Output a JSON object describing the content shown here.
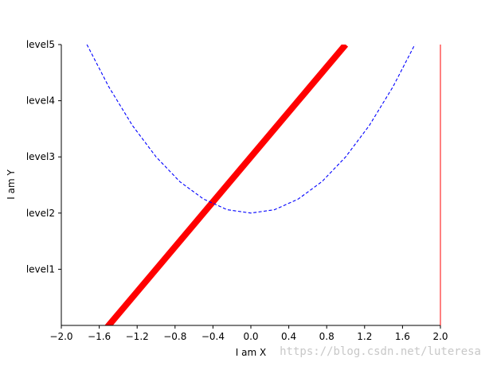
{
  "chart_data": {
    "type": "line",
    "title": "",
    "xlabel": "I am X",
    "ylabel": "I am Y",
    "xlim": [
      -2.0,
      2.0
    ],
    "ylim": [
      0.0,
      5.0
    ],
    "x_ticks": [
      -2.0,
      -1.6,
      -1.2,
      -0.8,
      -0.4,
      0.0,
      0.4,
      0.8,
      1.2,
      1.6,
      2.0
    ],
    "x_tick_labels": [
      "−2.0",
      "−1.6",
      "−1.2",
      "−0.8",
      "−0.4",
      "0.0",
      "0.4",
      "0.8",
      "1.2",
      "1.6",
      "2.0"
    ],
    "y_ticks": [
      1,
      2,
      3,
      4,
      5
    ],
    "y_tick_labels": [
      "level1",
      "level2",
      "level3",
      "level4",
      "level5"
    ],
    "grid": false,
    "visible_spines": [
      "left",
      "bottom",
      "right"
    ],
    "series": [
      {
        "style": "solid",
        "color": "#ff0000",
        "linewidth": "thick",
        "x": [
          -2.0,
          -1.5,
          -1.0,
          -0.5,
          0.0,
          0.5,
          1.0
        ],
        "y": [
          -1.0,
          0.0,
          1.0,
          2.0,
          3.0,
          4.0,
          5.0
        ]
      },
      {
        "style": "dashed",
        "color": "#0000ff",
        "linewidth": "thin",
        "x": [
          -1.73,
          -1.5,
          -1.25,
          -1.0,
          -0.75,
          -0.5,
          -0.25,
          0.0,
          0.25,
          0.5,
          0.75,
          1.0,
          1.25,
          1.5,
          1.73
        ],
        "y": [
          5.0,
          4.25,
          3.56,
          3.0,
          2.56,
          2.25,
          2.06,
          2.0,
          2.06,
          2.25,
          2.56,
          3.0,
          3.56,
          4.25,
          5.0
        ]
      }
    ]
  },
  "watermark": "https://blog.csdn.net/luteresa"
}
